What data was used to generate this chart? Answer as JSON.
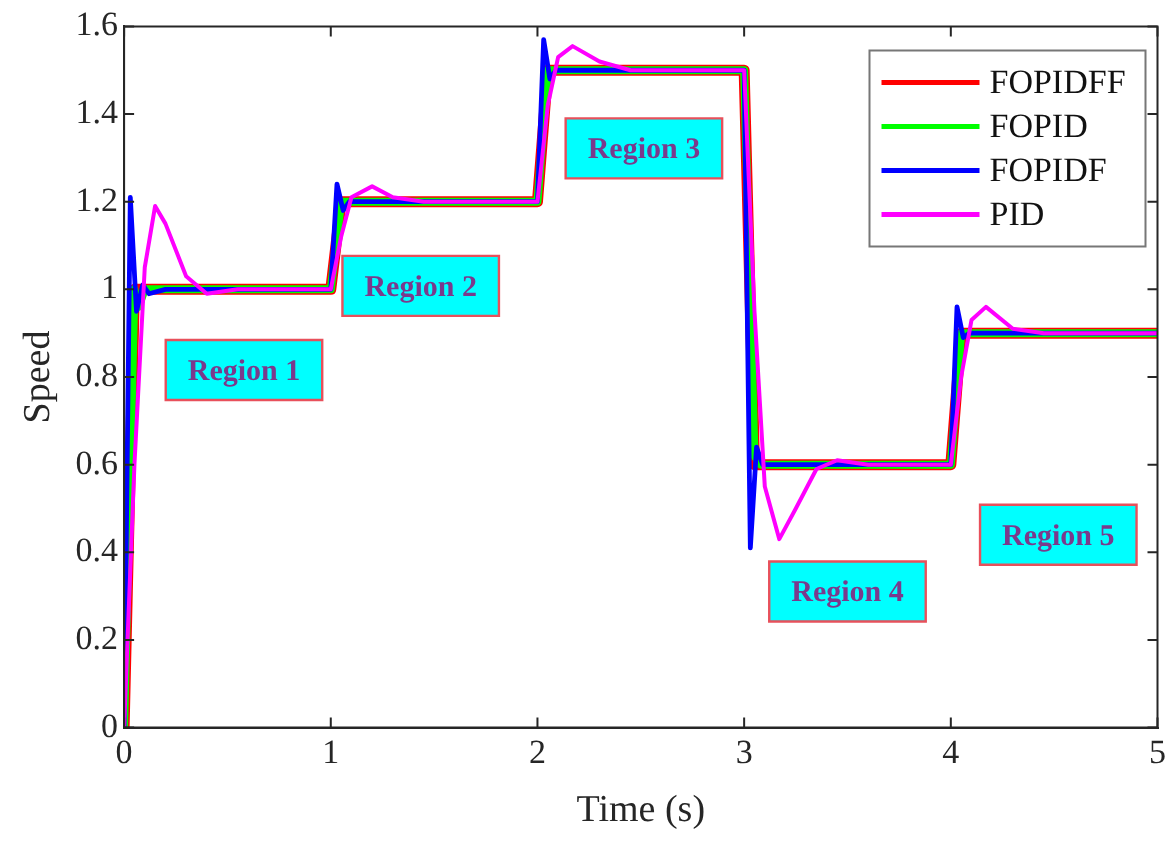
{
  "chart_data": {
    "type": "line",
    "xlabel": "Time (s)",
    "ylabel": "Speed",
    "xlim": [
      0,
      5
    ],
    "ylim": [
      0,
      1.6
    ],
    "xticks": [
      0,
      1,
      2,
      3,
      4,
      5
    ],
    "yticks": [
      0,
      0.2,
      0.4,
      0.6,
      0.8,
      1,
      1.2,
      1.4,
      1.6
    ],
    "grid": false,
    "legend": "top right",
    "marker": "none",
    "line_style": "solid",
    "series": [
      {
        "name": "FOPIDFF",
        "color": "#ff0000",
        "x": [
          0,
          0.05,
          1,
          1.05,
          2,
          2.05,
          3,
          3.05,
          4,
          4.05,
          5
        ],
        "values": [
          0,
          1,
          1,
          1.2,
          1.2,
          1.5,
          1.5,
          0.6,
          0.6,
          0.9,
          0.9
        ]
      },
      {
        "name": "FOPID",
        "color": "#00ff00",
        "x": [
          0,
          0.05,
          0.07,
          0.1,
          1,
          1.05,
          2,
          2.05,
          3,
          3.05,
          3.08,
          4,
          4.05,
          5
        ],
        "values": [
          0,
          1,
          0.96,
          1,
          1,
          1.2,
          1.2,
          1.5,
          1.5,
          0.62,
          0.6,
          0.6,
          0.9,
          0.9
        ]
      },
      {
        "name": "FOPIDF",
        "color": "#0000ff",
        "x": [
          0,
          0.03,
          0.06,
          0.09,
          0.12,
          0.2,
          1,
          1.03,
          1.06,
          1.09,
          2,
          2.03,
          2.06,
          2.09,
          3,
          3.03,
          3.06,
          3.09,
          4,
          4.03,
          4.06,
          4.09,
          5
        ],
        "values": [
          0,
          1.21,
          0.95,
          1.01,
          0.99,
          1,
          1,
          1.24,
          1.18,
          1.2,
          1.2,
          1.57,
          1.48,
          1.5,
          1.5,
          0.41,
          0.64,
          0.6,
          0.6,
          0.96,
          0.89,
          0.9,
          0.9
        ]
      },
      {
        "name": "PID",
        "color": "#ff00ff",
        "x": [
          0,
          0.05,
          0.1,
          0.15,
          0.2,
          0.3,
          0.4,
          0.55,
          1,
          1.05,
          1.1,
          1.2,
          1.3,
          1.45,
          2,
          2.05,
          2.1,
          2.17,
          2.3,
          2.45,
          3,
          3.05,
          3.1,
          3.17,
          3.25,
          3.35,
          3.45,
          3.6,
          4,
          4.05,
          4.1,
          4.17,
          4.3,
          4.45,
          5
        ],
        "values": [
          0,
          0.6,
          1.05,
          1.19,
          1.15,
          1.03,
          0.99,
          1,
          1,
          1.12,
          1.21,
          1.235,
          1.21,
          1.2,
          1.2,
          1.42,
          1.53,
          1.555,
          1.52,
          1.5,
          1.5,
          0.95,
          0.55,
          0.43,
          0.5,
          0.59,
          0.61,
          0.6,
          0.6,
          0.8,
          0.93,
          0.96,
          0.91,
          0.9,
          0.9
        ]
      }
    ],
    "annotations": [
      "Region 1",
      "Region 2",
      "Region 3",
      "Region 4",
      "Region 5"
    ]
  }
}
